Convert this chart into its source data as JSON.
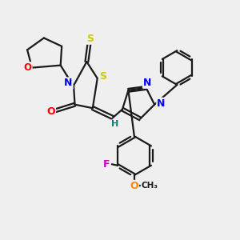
{
  "background_color": "#efefef",
  "bond_color": "#1a1a1a",
  "bond_width": 1.6,
  "figsize": [
    3.0,
    3.0
  ],
  "dpi": 100,
  "colors": {
    "O": "#ff0000",
    "O_methoxy": "#ff8800",
    "N": "#0000ff",
    "S": "#cccc00",
    "F": "#cc00cc",
    "H": "#008080",
    "C": "#1a1a1a"
  }
}
